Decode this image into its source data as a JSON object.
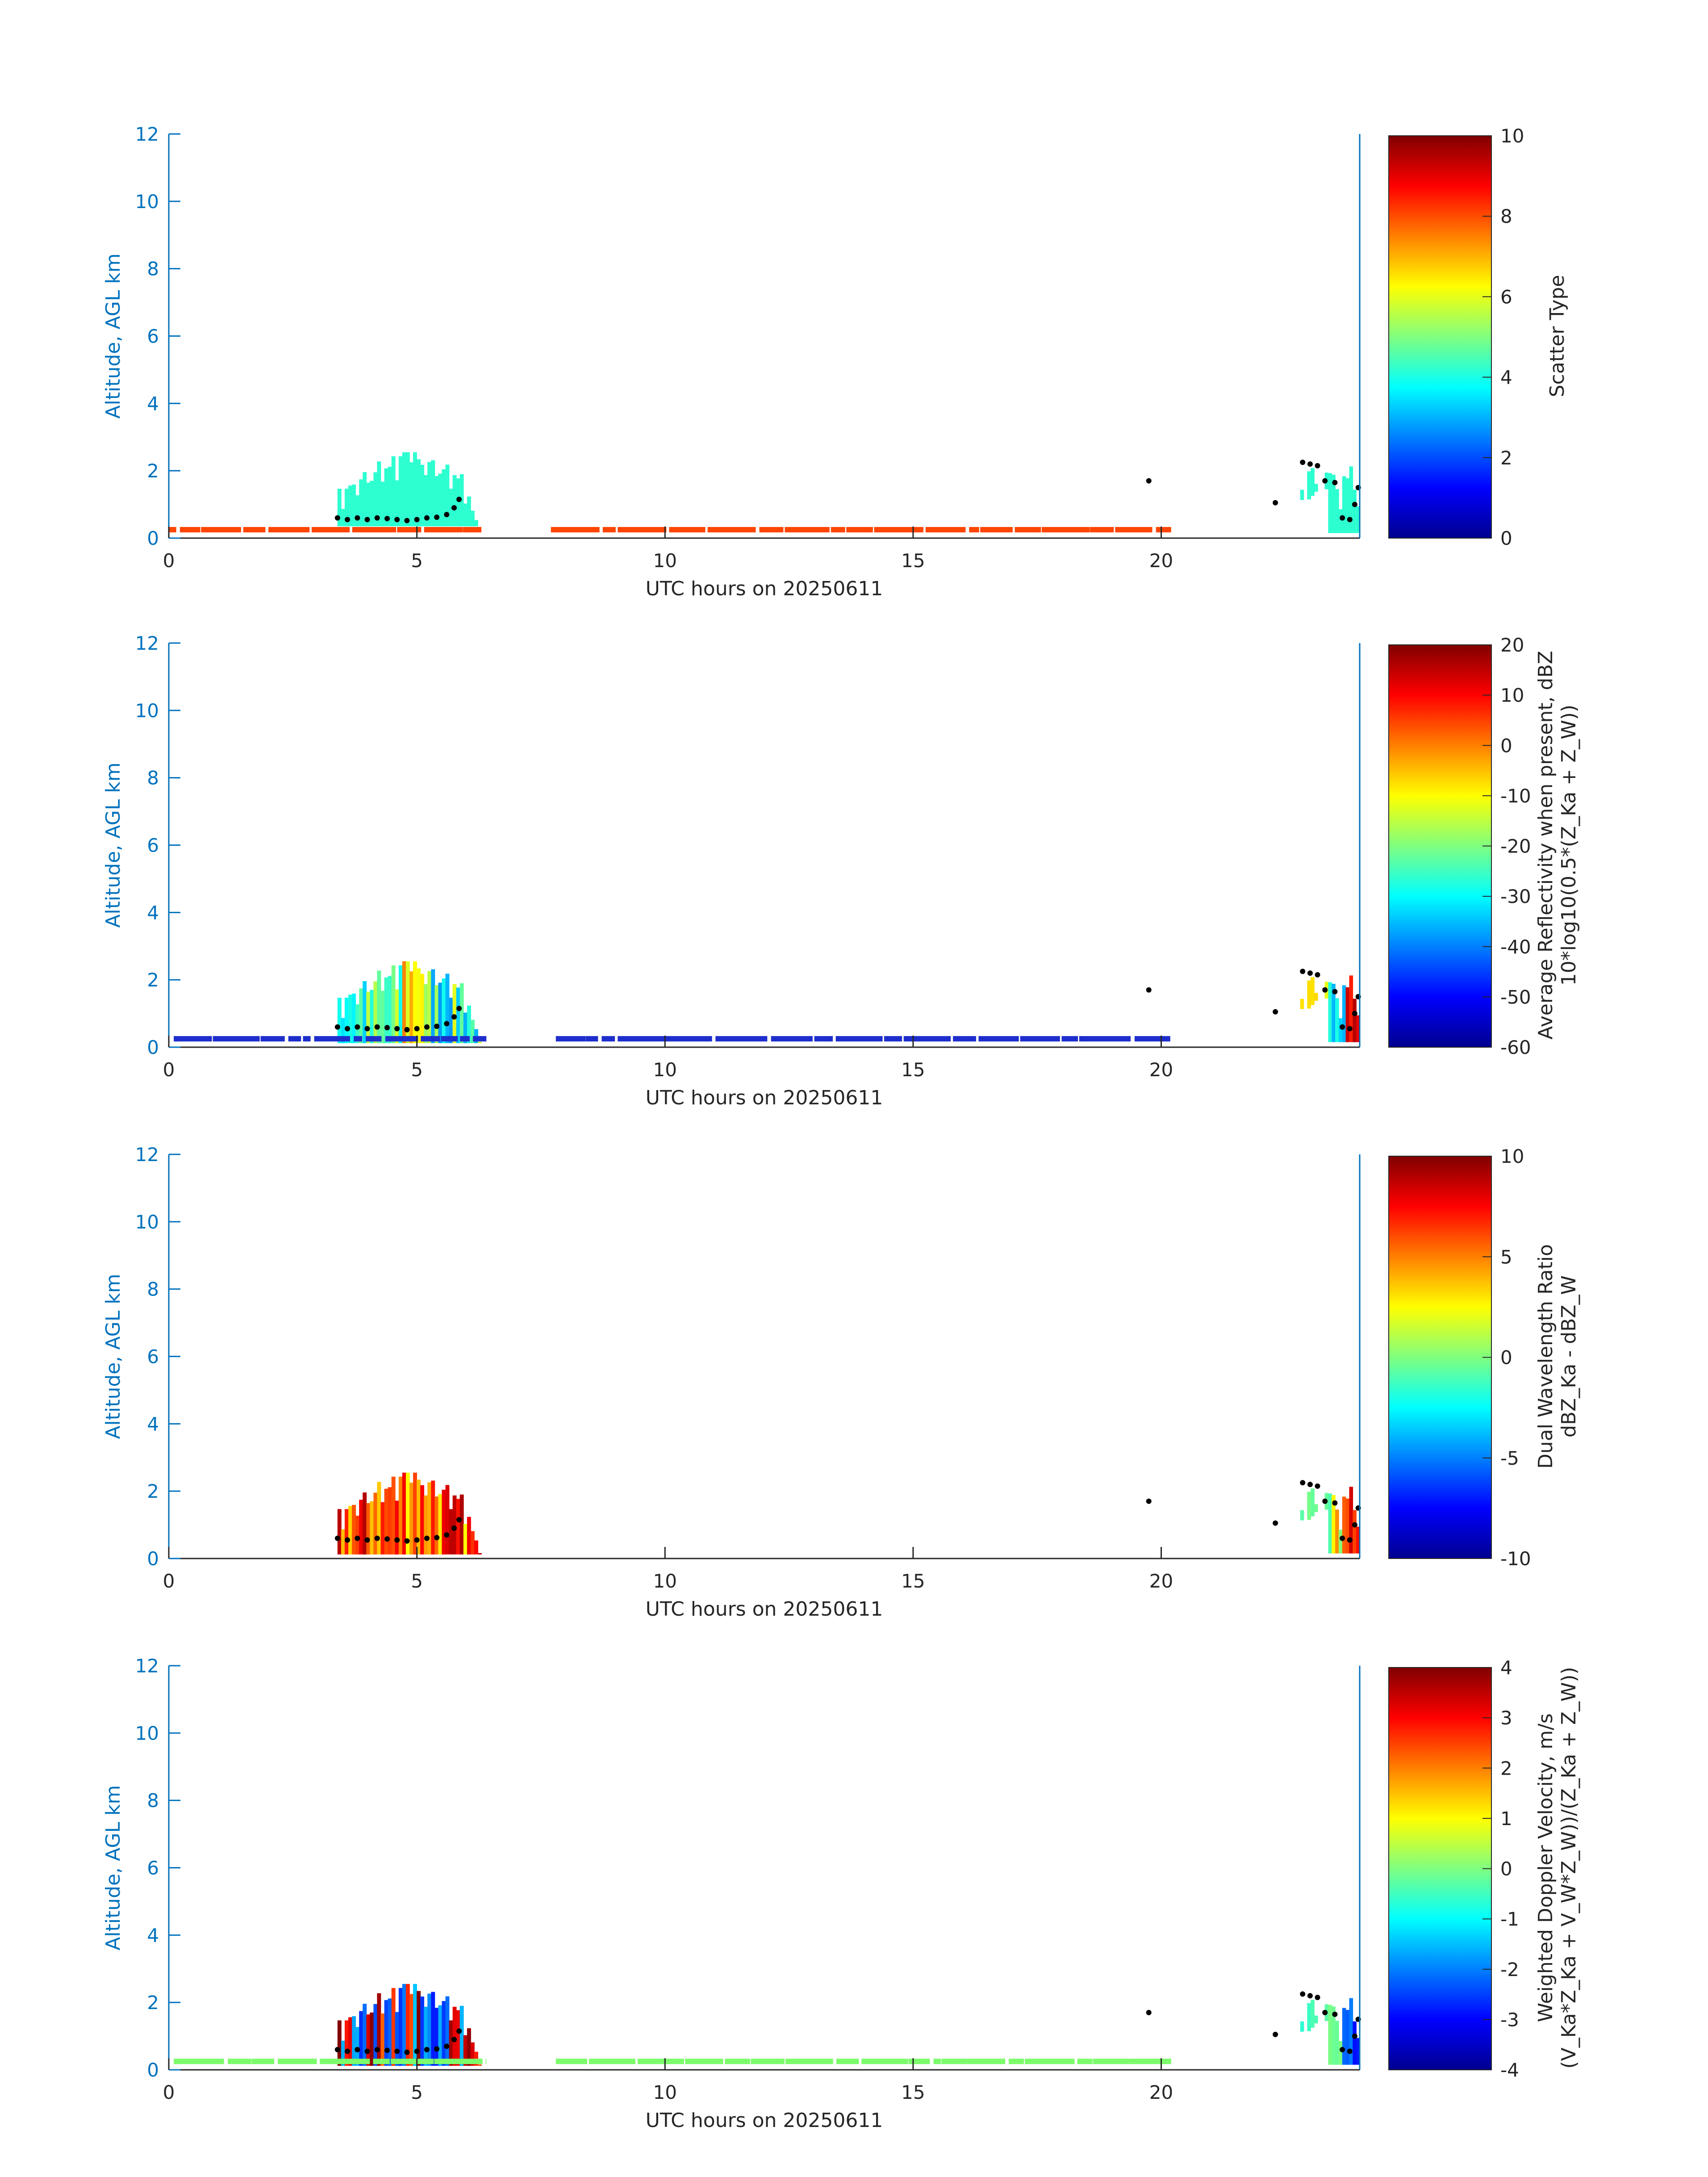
{
  "colors": {
    "axis_blue": "#0072BD",
    "text_dark": "#262626",
    "black": "#000000",
    "layer_orange": "#FF4500",
    "layer_blue": "#1E2ECC",
    "layer_green": "#7CFC6A",
    "cloud_cyan": "#33FFE0"
  },
  "chart_data": [
    {
      "type": "heatmap",
      "title": "",
      "xlabel": "UTC hours on 20250611",
      "ylabel": "Altitude, AGL km",
      "xlim": [
        0,
        24
      ],
      "ylim": [
        0,
        12
      ],
      "xticks": [
        0,
        5,
        10,
        15,
        20
      ],
      "yticks": [
        0,
        2,
        4,
        6,
        8,
        10,
        12
      ],
      "grid": false,
      "colorbar": {
        "label_lines": [
          "Scatter Type"
        ],
        "range": [
          0,
          10
        ],
        "ticks": [
          0,
          2,
          4,
          6,
          8,
          10
        ]
      },
      "low_layer": {
        "altitude_km": 0.25,
        "value": 8.5,
        "color": "#FF4500",
        "segments_h": [
          [
            0,
            6.3
          ],
          [
            7.7,
            20.2
          ]
        ]
      },
      "cloud_value": 4.2,
      "cbh_points": [
        [
          3.4,
          0.6
        ],
        [
          3.6,
          0.55
        ],
        [
          3.8,
          0.6
        ],
        [
          4.0,
          0.55
        ],
        [
          4.2,
          0.6
        ],
        [
          4.4,
          0.58
        ],
        [
          4.6,
          0.55
        ],
        [
          4.8,
          0.52
        ],
        [
          5.0,
          0.55
        ],
        [
          5.2,
          0.6
        ],
        [
          5.4,
          0.62
        ],
        [
          5.6,
          0.7
        ],
        [
          5.75,
          0.9
        ],
        [
          5.85,
          1.15
        ],
        [
          19.75,
          1.7
        ],
        [
          22.3,
          1.05
        ],
        [
          22.85,
          2.25
        ],
        [
          23.0,
          2.2
        ],
        [
          23.15,
          2.15
        ],
        [
          23.3,
          1.7
        ],
        [
          23.5,
          1.65
        ],
        [
          23.65,
          0.6
        ],
        [
          23.8,
          0.55
        ],
        [
          23.9,
          1.0
        ],
        [
          23.97,
          1.5
        ]
      ]
    },
    {
      "type": "heatmap",
      "title": "",
      "xlabel": "UTC hours on 20250611",
      "ylabel": "Altitude, AGL km",
      "xlim": [
        0,
        24
      ],
      "ylim": [
        0,
        12
      ],
      "xticks": [
        0,
        5,
        10,
        15,
        20
      ],
      "yticks": [
        0,
        2,
        4,
        6,
        8,
        10,
        12
      ],
      "grid": false,
      "colorbar": {
        "label_lines": [
          "Average Reflectivity when present, dBZ",
          "10*log10(0.5*(Z_Ka + Z_W))"
        ],
        "range": [
          -60,
          20
        ],
        "ticks": [
          -60,
          -50,
          -40,
          -30,
          -20,
          -10,
          0,
          10,
          20
        ]
      },
      "low_layer": {
        "altitude_km": 0.25,
        "value": -55,
        "color": "#1E2ECC",
        "segments_h": [
          [
            0.1,
            6.4
          ],
          [
            7.8,
            20.2
          ]
        ]
      },
      "cloud_value": -30,
      "cbh_points": [
        [
          3.4,
          0.6
        ],
        [
          3.6,
          0.55
        ],
        [
          3.8,
          0.6
        ],
        [
          4.0,
          0.55
        ],
        [
          4.2,
          0.6
        ],
        [
          4.4,
          0.58
        ],
        [
          4.6,
          0.55
        ],
        [
          4.8,
          0.52
        ],
        [
          5.0,
          0.55
        ],
        [
          5.2,
          0.6
        ],
        [
          5.4,
          0.62
        ],
        [
          5.6,
          0.7
        ],
        [
          5.75,
          0.9
        ],
        [
          5.85,
          1.15
        ],
        [
          19.75,
          1.7
        ],
        [
          22.3,
          1.05
        ],
        [
          22.85,
          2.25
        ],
        [
          23.0,
          2.2
        ],
        [
          23.15,
          2.15
        ],
        [
          23.3,
          1.7
        ],
        [
          23.5,
          1.65
        ],
        [
          23.65,
          0.6
        ],
        [
          23.8,
          0.55
        ],
        [
          23.9,
          1.0
        ],
        [
          23.97,
          1.5
        ]
      ]
    },
    {
      "type": "heatmap",
      "title": "",
      "xlabel": "UTC hours on 20250611",
      "ylabel": "Altitude, AGL km",
      "xlim": [
        0,
        24
      ],
      "ylim": [
        0,
        12
      ],
      "xticks": [
        0,
        5,
        10,
        15,
        20
      ],
      "yticks": [
        0,
        2,
        4,
        6,
        8,
        10,
        12
      ],
      "grid": false,
      "colorbar": {
        "label_lines": [
          "Dual Wavelength Ratio",
          "dBZ_Ka - dBZ_W"
        ],
        "range": [
          -10,
          10
        ],
        "ticks": [
          -10,
          -5,
          0,
          5,
          10
        ]
      },
      "low_layer": null,
      "cloud_value": 6,
      "cbh_points": [
        [
          3.4,
          0.6
        ],
        [
          3.6,
          0.55
        ],
        [
          3.8,
          0.6
        ],
        [
          4.0,
          0.55
        ],
        [
          4.2,
          0.6
        ],
        [
          4.4,
          0.58
        ],
        [
          4.6,
          0.55
        ],
        [
          4.8,
          0.52
        ],
        [
          5.0,
          0.55
        ],
        [
          5.2,
          0.6
        ],
        [
          5.4,
          0.62
        ],
        [
          5.6,
          0.7
        ],
        [
          5.75,
          0.9
        ],
        [
          5.85,
          1.15
        ],
        [
          19.75,
          1.7
        ],
        [
          22.3,
          1.05
        ],
        [
          22.85,
          2.25
        ],
        [
          23.0,
          2.2
        ],
        [
          23.15,
          2.15
        ],
        [
          23.3,
          1.7
        ],
        [
          23.5,
          1.65
        ],
        [
          23.65,
          0.6
        ],
        [
          23.8,
          0.55
        ],
        [
          23.9,
          1.0
        ],
        [
          23.97,
          1.5
        ]
      ]
    },
    {
      "type": "heatmap",
      "title": "",
      "xlabel": "UTC hours on 20250611",
      "ylabel": "Altitude, AGL km",
      "xlim": [
        0,
        24
      ],
      "ylim": [
        0,
        12
      ],
      "xticks": [
        0,
        5,
        10,
        15,
        20
      ],
      "yticks": [
        0,
        2,
        4,
        6,
        8,
        10,
        12
      ],
      "grid": false,
      "colorbar": {
        "label_lines": [
          "Weighted Doppler Velocity, m/s",
          "(V_Ka*Z_Ka + V_W*Z_W))/(Z_Ka + Z_W))"
        ],
        "range": [
          -4,
          4
        ],
        "ticks": [
          -4,
          -3,
          -2,
          -1,
          0,
          1,
          2,
          3,
          4
        ]
      },
      "low_layer": {
        "altitude_km": 0.25,
        "value": 0.2,
        "color": "#7CFC6A",
        "segments_h": [
          [
            0.1,
            6.4
          ],
          [
            7.8,
            20.2
          ]
        ]
      },
      "cloud_value": 1.5,
      "cbh_points": [
        [
          3.4,
          0.6
        ],
        [
          3.6,
          0.55
        ],
        [
          3.8,
          0.6
        ],
        [
          4.0,
          0.55
        ],
        [
          4.2,
          0.6
        ],
        [
          4.4,
          0.58
        ],
        [
          4.6,
          0.55
        ],
        [
          4.8,
          0.52
        ],
        [
          5.0,
          0.55
        ],
        [
          5.2,
          0.6
        ],
        [
          5.4,
          0.62
        ],
        [
          5.6,
          0.7
        ],
        [
          5.75,
          0.9
        ],
        [
          5.85,
          1.15
        ],
        [
          19.75,
          1.7
        ],
        [
          22.3,
          1.05
        ],
        [
          22.85,
          2.25
        ],
        [
          23.0,
          2.2
        ],
        [
          23.15,
          2.15
        ],
        [
          23.3,
          1.7
        ],
        [
          23.5,
          1.65
        ],
        [
          23.65,
          0.6
        ],
        [
          23.8,
          0.55
        ],
        [
          23.9,
          1.0
        ],
        [
          23.97,
          1.5
        ]
      ]
    }
  ]
}
